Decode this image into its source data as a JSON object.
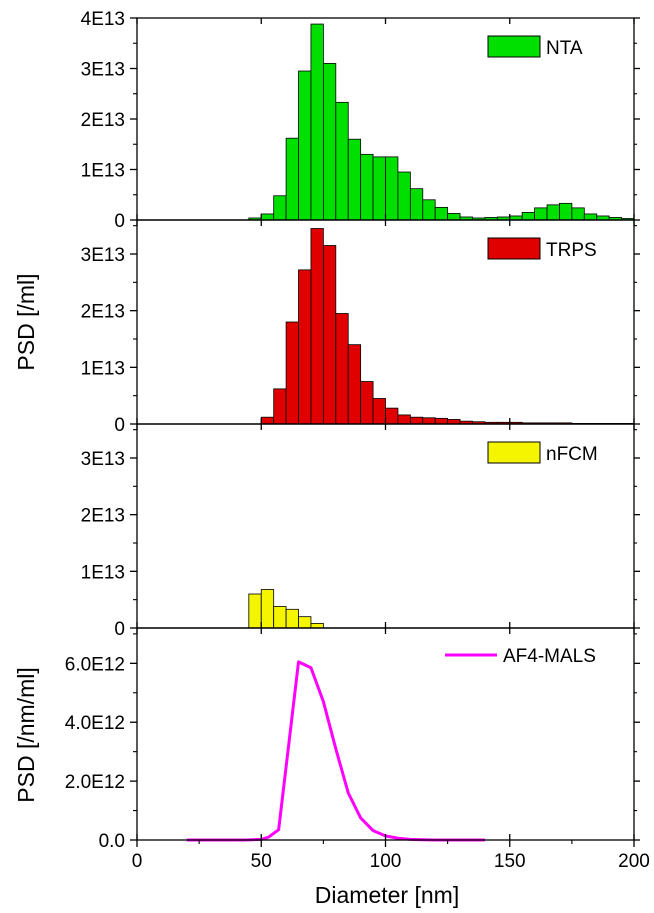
{
  "figure": {
    "xlabel": "Diameter [nm]",
    "ylabel_top": "PSD [/ml]",
    "ylabel_bottom": "PSD [/nm/ml]",
    "xticks": [
      0,
      50,
      100,
      150,
      200
    ],
    "xlim": [
      0,
      200
    ]
  },
  "chart_data": [
    {
      "type": "bar",
      "legend": "NTA",
      "color": "#00e000",
      "bin_width": 5,
      "ylim": [
        0,
        40000000000000.0
      ],
      "yticks": [
        0,
        10000000000000.0,
        20000000000000.0,
        30000000000000.0,
        40000000000000.0
      ],
      "ytick_labels": [
        "0",
        "1E13",
        "2E13",
        "3E13",
        "4E13"
      ],
      "x": [
        45,
        50,
        55,
        60,
        65,
        70,
        75,
        80,
        85,
        90,
        95,
        100,
        105,
        110,
        115,
        120,
        125,
        130,
        135,
        140,
        145,
        150,
        155,
        160,
        165,
        170,
        175,
        180,
        185,
        190,
        195
      ],
      "values": [
        400000000000.0,
        1200000000000.0,
        4800000000000.0,
        16200000000000.0,
        29500000000000.0,
        38800000000000.0,
        31000000000000.0,
        23300000000000.0,
        16000000000000.0,
        13000000000000.0,
        12500000000000.0,
        12500000000000.0,
        9500000000000.0,
        6200000000000.0,
        4000000000000.0,
        2500000000000.0,
        1300000000000.0,
        600000000000.0,
        400000000000.0,
        500000000000.0,
        600000000000.0,
        800000000000.0,
        1500000000000.0,
        2400000000000.0,
        3000000000000.0,
        3300000000000.0,
        2400000000000.0,
        1200000000000.0,
        800000000000.0,
        500000000000.0,
        300000000000.0
      ]
    },
    {
      "type": "bar",
      "legend": "TRPS",
      "color": "#e00000",
      "bin_width": 5,
      "ylim": [
        0,
        36000000000000.0
      ],
      "yticks": [
        0,
        10000000000000.0,
        20000000000000.0,
        30000000000000.0
      ],
      "ytick_labels": [
        "0",
        "1E13",
        "2E13",
        "3E13"
      ],
      "x": [
        50,
        55,
        60,
        65,
        70,
        75,
        80,
        85,
        90,
        95,
        100,
        105,
        110,
        115,
        120,
        125,
        130,
        135,
        140,
        145,
        150,
        155,
        160,
        165,
        170,
        175,
        180,
        185,
        190,
        195
      ],
      "values": [
        1200000000000.0,
        6200000000000.0,
        18000000000000.0,
        27200000000000.0,
        34500000000000.0,
        31500000000000.0,
        19500000000000.0,
        14000000000000.0,
        7500000000000.0,
        4500000000000.0,
        2800000000000.0,
        1600000000000.0,
        1200000000000.0,
        1100000000000.0,
        1000000000000.0,
        800000000000.0,
        500000000000.0,
        400000000000.0,
        300000000000.0,
        300000000000.0,
        300000000000.0,
        200000000000.0,
        200000000000.0,
        200000000000.0,
        200000000000.0,
        100000000000.0,
        100000000000.0,
        100000000000.0,
        100000000000.0,
        100000000000.0
      ]
    },
    {
      "type": "bar",
      "legend": "nFCM",
      "color": "#f5f500",
      "bin_width": 5,
      "ylim": [
        0,
        36000000000000.0
      ],
      "yticks": [
        0,
        10000000000000.0,
        20000000000000.0,
        30000000000000.0
      ],
      "ytick_labels": [
        "0",
        "1E13",
        "2E13",
        "3E13"
      ],
      "x": [
        45,
        50,
        55,
        60,
        65,
        70
      ],
      "values": [
        6000000000000.0,
        6800000000000.0,
        3800000000000.0,
        3300000000000.0,
        2000000000000.0,
        800000000000.0
      ]
    },
    {
      "type": "line",
      "legend": "AF4-MALS",
      "color": "#ff00ff",
      "ylim": [
        0,
        7200000000000.0
      ],
      "yticks": [
        0,
        2000000000000.0,
        4000000000000.0,
        6000000000000.0
      ],
      "ytick_labels": [
        "0.0",
        "2.0E12",
        "4.0E12",
        "6.0E12"
      ],
      "x": [
        20,
        30,
        40,
        45,
        50,
        53,
        57,
        61,
        65,
        70,
        75,
        80,
        85,
        90,
        95,
        100,
        105,
        110,
        115,
        120,
        130,
        140
      ],
      "values": [
        0,
        0,
        0,
        5000000000.0,
        20000000000.0,
        100000000000.0,
        350000000000.0,
        3200000000000.0,
        6050000000000.0,
        5850000000000.0,
        4700000000000.0,
        3100000000000.0,
        1600000000000.0,
        750000000000.0,
        320000000000.0,
        140000000000.0,
        60000000000.0,
        20000000000.0,
        10000000000.0,
        0,
        0,
        0
      ]
    }
  ]
}
